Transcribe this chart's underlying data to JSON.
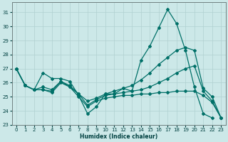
{
  "xlabel": "Humidex (Indice chaleur)",
  "background_color": "#cce8e8",
  "grid_color": "#b0d0d0",
  "line_color": "#007068",
  "xlim": [
    -0.5,
    23.5
  ],
  "ylim": [
    23,
    31.7
  ],
  "yticks": [
    23,
    24,
    25,
    26,
    27,
    28,
    29,
    30,
    31
  ],
  "xticks": [
    0,
    1,
    2,
    3,
    4,
    5,
    6,
    7,
    8,
    9,
    10,
    11,
    12,
    13,
    14,
    15,
    16,
    17,
    18,
    19,
    20,
    21,
    22,
    23
  ],
  "lines": {
    "line1_x": [
      0,
      1,
      2,
      3,
      4,
      5,
      6,
      7,
      8,
      9,
      10,
      11,
      12,
      13,
      14,
      15,
      16,
      17,
      18,
      19,
      20,
      21,
      22
    ],
    "line1_y": [
      27.0,
      25.8,
      25.5,
      26.7,
      26.3,
      26.3,
      26.1,
      25.1,
      23.8,
      24.3,
      25.2,
      25.2,
      25.6,
      25.4,
      27.6,
      28.6,
      29.9,
      31.2,
      30.2,
      28.3,
      25.7,
      23.8,
      23.5
    ],
    "line2_x": [
      0,
      1,
      2,
      3,
      4,
      5,
      6,
      7,
      8,
      9,
      10,
      11,
      12,
      13,
      14,
      15,
      16,
      17,
      18,
      19,
      20,
      21,
      22,
      23
    ],
    "line2_y": [
      27.0,
      25.8,
      25.5,
      25.7,
      25.5,
      26.1,
      25.8,
      25.2,
      24.7,
      24.9,
      25.2,
      25.4,
      25.6,
      25.8,
      26.2,
      26.7,
      27.3,
      27.8,
      28.3,
      28.5,
      28.3,
      25.6,
      25.0,
      23.5
    ],
    "line3_x": [
      0,
      1,
      2,
      3,
      4,
      5,
      6,
      7,
      8,
      9,
      10,
      11,
      12,
      13,
      14,
      15,
      16,
      17,
      18,
      19,
      20,
      21,
      22,
      23
    ],
    "line3_y": [
      27.0,
      25.8,
      25.5,
      25.5,
      25.4,
      26.1,
      25.7,
      25.2,
      24.4,
      24.8,
      25.1,
      25.2,
      25.3,
      25.4,
      25.5,
      25.7,
      26.0,
      26.3,
      26.7,
      27.0,
      27.2,
      25.4,
      24.7,
      23.5
    ],
    "line4_x": [
      0,
      1,
      2,
      3,
      4,
      5,
      6,
      7,
      8,
      9,
      10,
      11,
      12,
      13,
      14,
      15,
      16,
      17,
      18,
      19,
      20,
      21,
      22,
      23
    ],
    "line4_y": [
      27.0,
      25.8,
      25.5,
      25.5,
      25.3,
      26.0,
      25.7,
      25.0,
      24.3,
      24.7,
      24.9,
      25.0,
      25.1,
      25.1,
      25.2,
      25.2,
      25.3,
      25.3,
      25.4,
      25.4,
      25.4,
      25.1,
      24.6,
      23.5
    ]
  }
}
